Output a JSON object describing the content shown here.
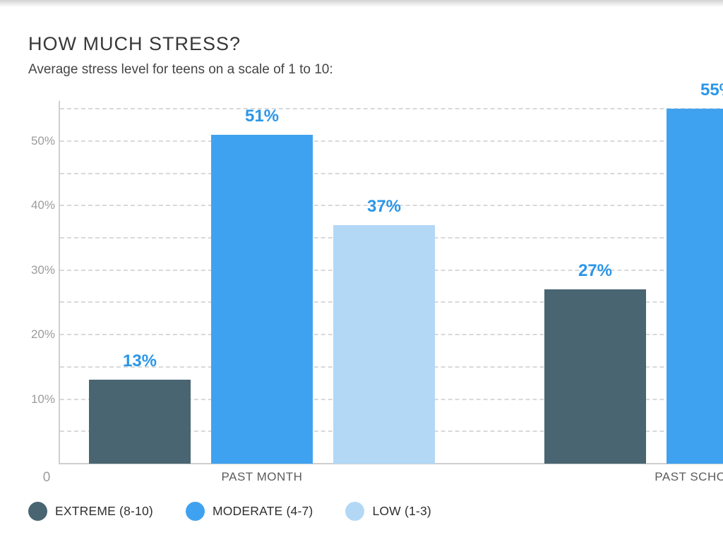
{
  "header": {
    "title": "HOW MUCH STRESS?",
    "subtitle": "Average stress level for teens on a scale of 1 to 10:"
  },
  "chart_data": {
    "type": "bar",
    "title": "HOW MUCH STRESS?",
    "subtitle": "Average stress level for teens on a scale of 1 to 10:",
    "categories": [
      "PAST MONTH",
      "PAST SCHOOL YEAR"
    ],
    "series": [
      {
        "name": "EXTREME (8-10)",
        "color": "#4a6572",
        "values": [
          13,
          27
        ]
      },
      {
        "name": "MODERATE (4-7)",
        "color": "#3fa2f0",
        "values": [
          51,
          55
        ]
      },
      {
        "name": "LOW (1-3)",
        "color": "#b3d8f6",
        "values": [
          37,
          null
        ]
      }
    ],
    "value_suffix": "%",
    "data_label_color": "#2b96e8",
    "xlabel": "",
    "ylabel": "",
    "y_axis": {
      "ticks": [
        {
          "v": 10,
          "label": "10%"
        },
        {
          "v": 20,
          "label": "20%"
        },
        {
          "v": 30,
          "label": "30%"
        },
        {
          "v": 40,
          "label": "40%"
        },
        {
          "v": 50,
          "label": "50%"
        }
      ],
      "origin_label": "0",
      "min": 0,
      "max": 56,
      "gridline_step": 5,
      "grid_style": "dashed"
    },
    "legend_position": "bottom",
    "colors": {
      "axis_line": "#cfcfcf",
      "gridline": "#d9d9d9",
      "tick_text": "#9c9c9c",
      "category_text": "#5c5c5c",
      "legend_text": "#2f2f2f",
      "title_text": "#383838",
      "subtitle_text": "#454545"
    }
  }
}
